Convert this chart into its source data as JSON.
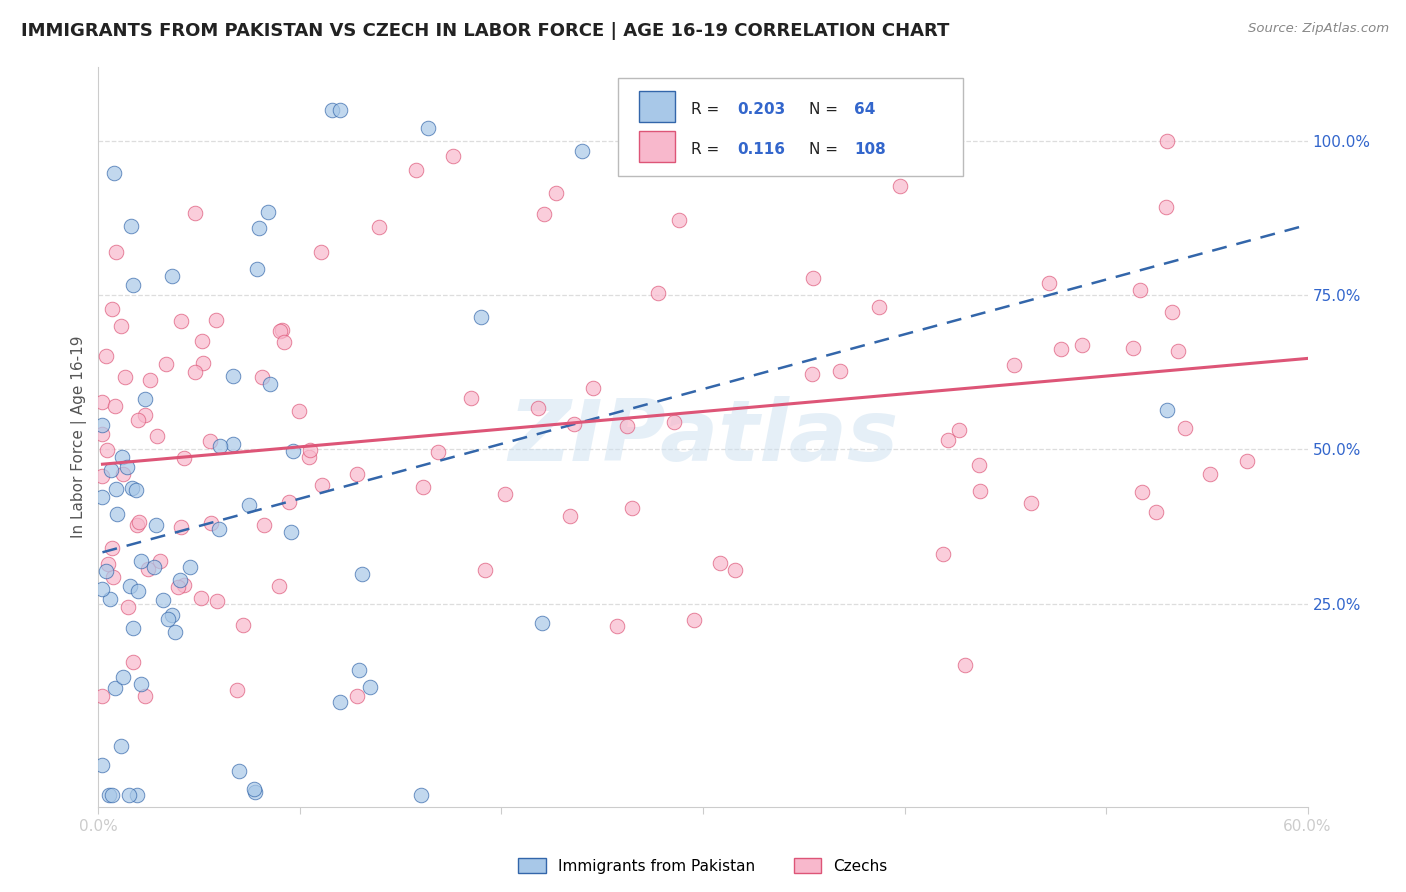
{
  "title": "IMMIGRANTS FROM PAKISTAN VS CZECH IN LABOR FORCE | AGE 16-19 CORRELATION CHART",
  "source": "Source: ZipAtlas.com",
  "ylabel": "In Labor Force | Age 16-19",
  "ytick_vals": [
    0.25,
    0.5,
    0.75,
    1.0
  ],
  "ytick_labels": [
    "25.0%",
    "50.0%",
    "75.0%",
    "100.0%"
  ],
  "xmin": 0.0,
  "xmax": 0.6,
  "ymin": -0.08,
  "ymax": 1.12,
  "r_pakistan": 0.203,
  "n_pakistan": 64,
  "r_czech": 0.116,
  "n_czech": 108,
  "color_pakistan": "#a8c8e8",
  "color_czech": "#f8b8cc",
  "line_color_pakistan": "#3366aa",
  "line_color_czech": "#dd5577",
  "legend_r_color": "#3366cc",
  "legend_n_color": "#3366cc",
  "watermark": "ZIPatlas",
  "background": "#ffffff",
  "grid_color": "#dddddd",
  "spine_color": "#cccccc"
}
